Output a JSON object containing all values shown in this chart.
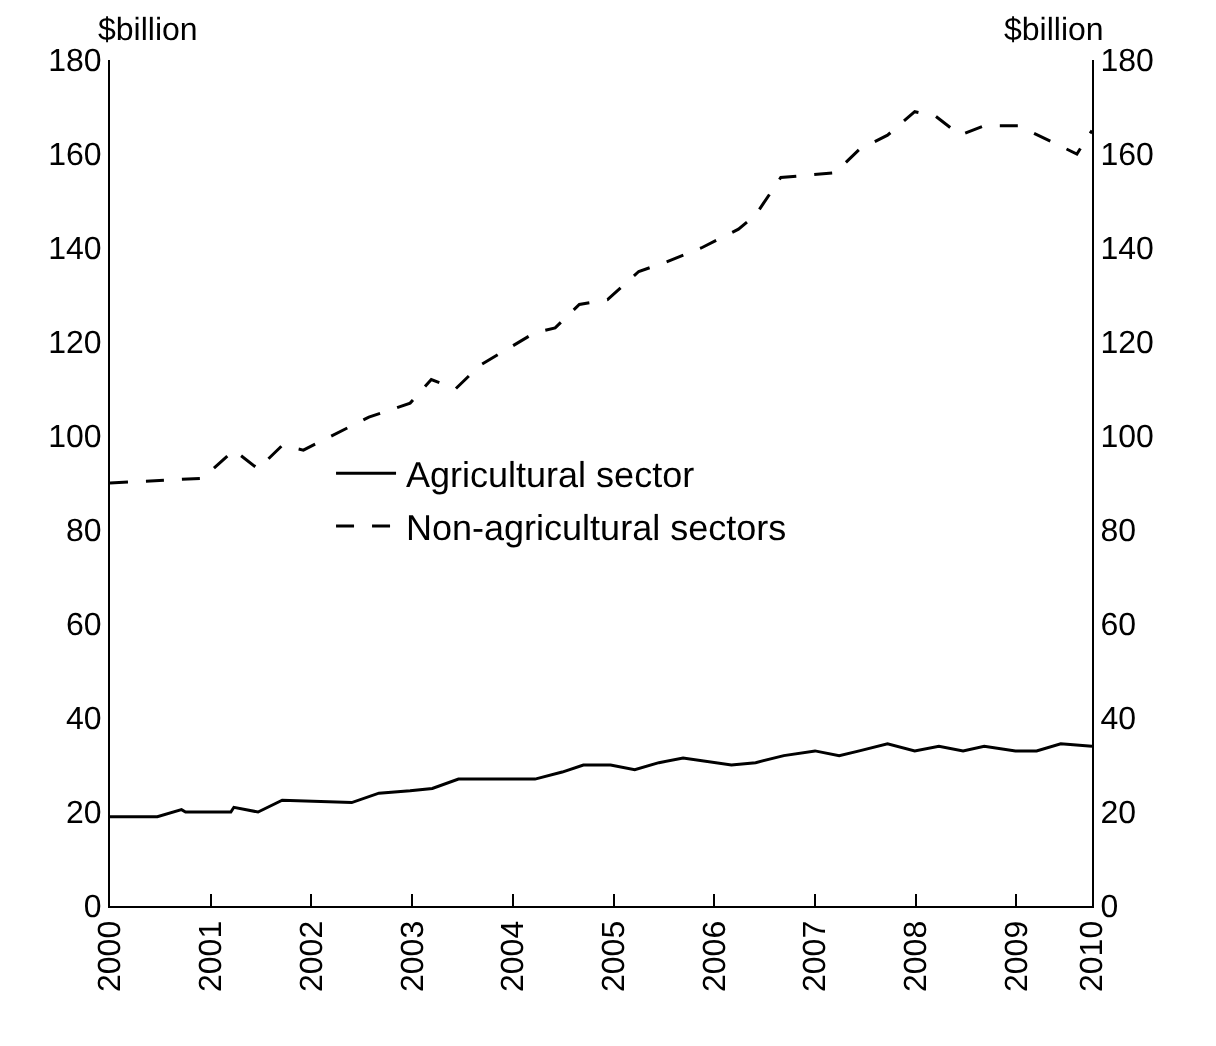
{
  "chart_data": {
    "type": "line",
    "ylabel": "$billion",
    "y2label": "$billion",
    "xlim": [
      2000,
      2009.75
    ],
    "xticks": [
      2000,
      2001,
      2002,
      2003,
      2004,
      2005,
      2006,
      2007,
      2008,
      2009,
      {
        "value": 2009.75,
        "label": "2010"
      }
    ],
    "ylim": [
      0,
      180
    ],
    "yticks": [
      0,
      20,
      40,
      60,
      80,
      100,
      120,
      140,
      160,
      180
    ],
    "y2lim": [
      0,
      180
    ],
    "y2ticks": [
      0,
      20,
      40,
      60,
      80,
      100,
      120,
      140,
      160,
      180
    ],
    "grid": false,
    "legend": "center",
    "marker": "none",
    "series": [
      {
        "name": "Agricultural sector",
        "color": "#000000",
        "line_style": "solid",
        "x": [
          2000,
          2000.47,
          2000.71,
          2000.75,
          2001.2,
          2001.23,
          2001.47,
          2001.71,
          2002.4,
          2002.67,
          2002.98,
          2003.2,
          2003.46,
          2004.22,
          2004.49,
          2004.7,
          2004.97,
          2005.21,
          2005.45,
          2005.69,
          2006.17,
          2006.41,
          2006.69,
          2007,
          2007.24,
          2007.44,
          2007.72,
          2007.99,
          2008.23,
          2008.47,
          2008.68,
          2008.99,
          2009.2,
          2009.44,
          2009.75
        ],
        "values": [
          19,
          19,
          20.5,
          20,
          20,
          21,
          20,
          22.5,
          22,
          24,
          24.5,
          25,
          27,
          27,
          28.5,
          30,
          30,
          29,
          30.5,
          31.5,
          30,
          30.5,
          32,
          33,
          32,
          33,
          34.5,
          33,
          34,
          33,
          34,
          33,
          33,
          34.5,
          34
        ]
      },
      {
        "name": "Non-agricultural sectors",
        "color": "#000000",
        "line_style": "dashed",
        "x": [
          2000,
          2000.92,
          2001.23,
          2001.47,
          2001.71,
          2001.92,
          2002.57,
          2002.98,
          2003.19,
          2003.43,
          2003.67,
          2004.22,
          2004.42,
          2004.66,
          2004.94,
          2005.25,
          2005.52,
          2005.87,
          2006.24,
          2006.41,
          2006.66,
          2007.2,
          2007.44,
          2007.72,
          2007.99,
          2008.2,
          2008.44,
          2008.68,
          2009.02,
          2009.6,
          2009.75
        ],
        "values": [
          90,
          91,
          97,
          93,
          98,
          97,
          104,
          107,
          112,
          110,
          115,
          122,
          123,
          128,
          129,
          135,
          137,
          140,
          144,
          147,
          155,
          156,
          161,
          164,
          169,
          168,
          164,
          166,
          166,
          160,
          165
        ]
      }
    ]
  }
}
